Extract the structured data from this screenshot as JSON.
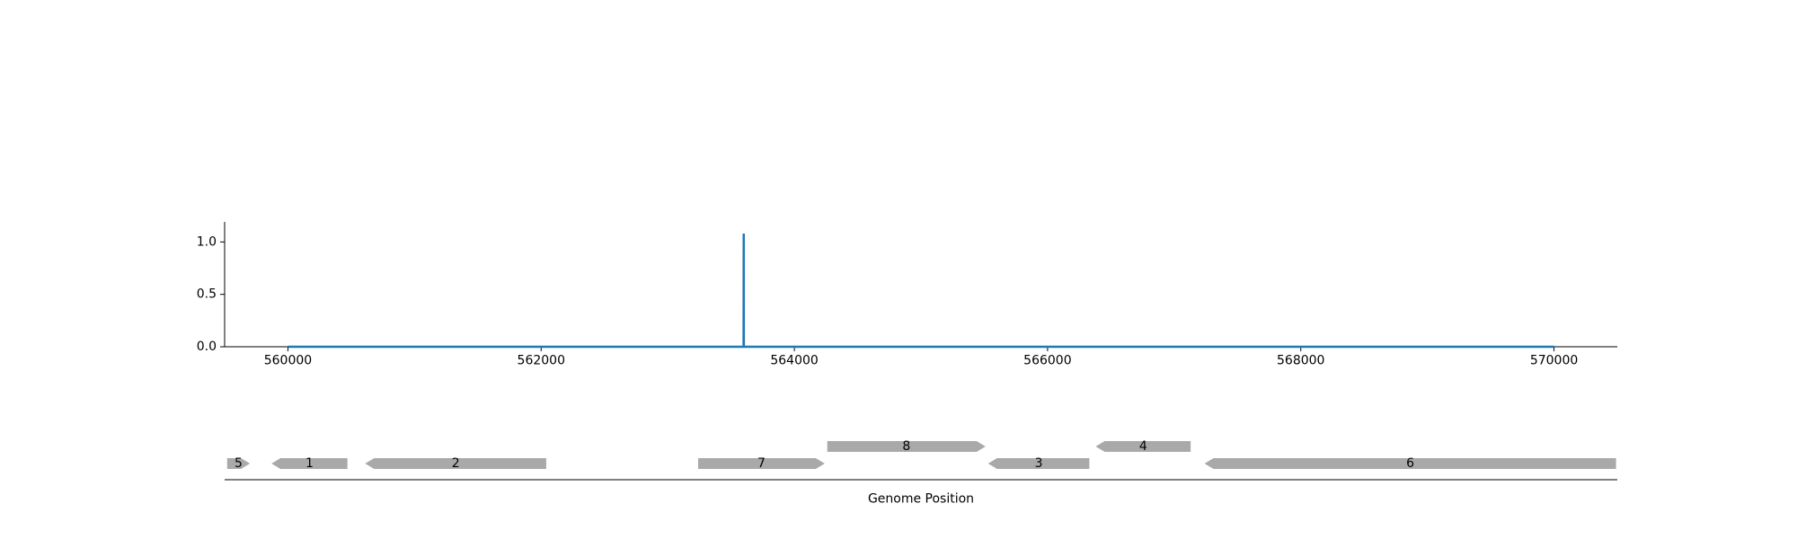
{
  "chart_data": [
    {
      "type": "line",
      "title": "",
      "xlabel": "",
      "ylabel": "",
      "xlim": [
        559500,
        570500
      ],
      "ylim": [
        0,
        1.2
      ],
      "xticks": [
        560000,
        562000,
        564000,
        566000,
        568000,
        570000
      ],
      "xtick_labels": [
        "560000",
        "562000",
        "564000",
        "566000",
        "568000",
        "570000"
      ],
      "yticks": [
        0,
        0.5,
        1
      ],
      "ytick_labels": [
        "0.0",
        "0.5",
        "1.0"
      ],
      "grid": false,
      "series": [
        {
          "color": "#1f77b4",
          "x": [
            560000,
            563599,
            563600,
            563601,
            570000
          ],
          "y": [
            0,
            0,
            1.08,
            0,
            0
          ]
        }
      ]
    },
    {
      "type": "gene_track",
      "xlabel": "Genome Position",
      "xlim": [
        559500,
        570500
      ],
      "feature_color": "#a9a9a9",
      "features": [
        {
          "label": "5",
          "start": 559520,
          "end": 559700,
          "strand": "+",
          "row": 0
        },
        {
          "label": "1",
          "start": 559870,
          "end": 560470,
          "strand": "-",
          "row": 0
        },
        {
          "label": "2",
          "start": 560610,
          "end": 562040,
          "strand": "-",
          "row": 0
        },
        {
          "label": "7",
          "start": 563240,
          "end": 564240,
          "strand": "+",
          "row": 0
        },
        {
          "label": "8",
          "start": 564260,
          "end": 565510,
          "strand": "+",
          "row": 1
        },
        {
          "label": "3",
          "start": 565530,
          "end": 566330,
          "strand": "-",
          "row": 0
        },
        {
          "label": "4",
          "start": 566380,
          "end": 567130,
          "strand": "-",
          "row": 1
        },
        {
          "label": "6",
          "start": 567240,
          "end": 570490,
          "strand": "-",
          "row": 0
        }
      ]
    }
  ]
}
